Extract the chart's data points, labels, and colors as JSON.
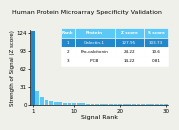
{
  "title": "Human Protein Microarray Specificity Validation",
  "xlabel": "Signal Rank",
  "ylabel": "Strength of Signal (Z score)",
  "ylim": [
    0,
    130
  ],
  "yticks": [
    0,
    31,
    62,
    93,
    124
  ],
  "xlim": [
    0.5,
    30.5
  ],
  "xticks": [
    1,
    10,
    20,
    30
  ],
  "bar_color": "#5bc8f5",
  "highlight_color": "#2288cc",
  "table_header_color": "#5bc8f5",
  "table_row1_color": "#2288cc",
  "background_color": "#f0f0eb",
  "table_data": [
    [
      "Rank",
      "Protein",
      "Z score",
      "S score"
    ],
    [
      "1",
      "Galectin-1",
      "127.95",
      "103.73"
    ],
    [
      "2",
      "Pro-calcitonin",
      "24.22",
      "10.6"
    ],
    [
      "3",
      "IPCB",
      "14.22",
      "0.81"
    ]
  ],
  "bar_values": [
    127.95,
    24.22,
    14.22,
    9.5,
    7.0,
    5.5,
    4.8,
    4.2,
    3.8,
    3.4,
    3.1,
    2.9,
    2.7,
    2.5,
    2.35,
    2.2,
    2.1,
    2.0,
    1.9,
    1.82,
    1.74,
    1.67,
    1.6,
    1.54,
    1.48,
    1.43,
    1.38,
    1.33,
    1.28,
    1.23
  ]
}
